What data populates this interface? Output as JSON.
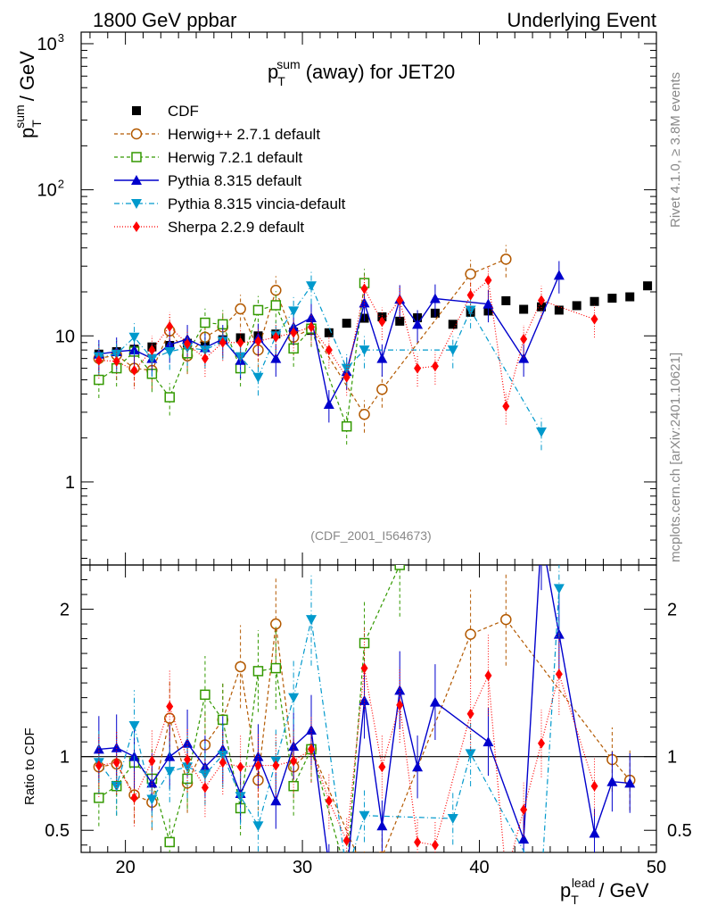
{
  "header": {
    "left": "1800 GeV ppbar",
    "right": "Underlying Event"
  },
  "side_text": {
    "rivet": "Rivet 4.1.0, ≥ 3.8M events",
    "source": "mcplots.cern.ch [arXiv:2401.10621]"
  },
  "watermark": "(CDF_2001_I564673)",
  "chart_data": {
    "type": "scatter",
    "title_main": "p",
    "title_sub": "T",
    "title_sup": "sum",
    "title_rest": "(away) for JET20",
    "ylabel_main": "p",
    "ylabel_sub": "T",
    "ylabel_sup": "sum",
    "ylabel_rest": "/ GeV",
    "xlabel_main": "p",
    "xlabel_sub": "T",
    "xlabel_sup": "lead",
    "xlabel_rest": "/ GeV",
    "ratio_ylabel": "Ratio to CDF",
    "xlim": [
      17.5,
      50
    ],
    "ylim": [
      0.27,
      1200
    ],
    "yscale": "log",
    "ratio_ylim": [
      0.35,
      2.3
    ],
    "xticks": [
      20,
      30,
      40,
      50
    ],
    "yticks": [
      1,
      10,
      100,
      1000
    ],
    "ytick_labels_main": [
      "1",
      "10"
    ],
    "ytick_labels_pow": [
      {
        "base": "10",
        "exp": "2"
      },
      {
        "base": "10",
        "exp": "3"
      }
    ],
    "ratio_yticks": [
      0.5,
      1,
      2
    ],
    "ratio_ytick_labels": [
      "0.5",
      "1",
      "2"
    ],
    "series": [
      {
        "name": "CDF",
        "color": "#000000",
        "marker": "square-filled",
        "dash": "none",
        "x": [
          18.5,
          19.5,
          20.5,
          21.5,
          22.5,
          23.5,
          24.5,
          25.5,
          26.5,
          27.5,
          28.5,
          29.5,
          30.5,
          31.5,
          32.5,
          33.5,
          34.5,
          35.5,
          36.5,
          37.5,
          38.5,
          39.5,
          40.5,
          41.5,
          42.5,
          43.5,
          44.5,
          45.5,
          46.5,
          47.5,
          48.5,
          49.5
        ],
        "y": [
          7.5,
          7.8,
          8.1,
          8.4,
          8.6,
          8.9,
          9.1,
          9.4,
          9.7,
          10.0,
          10.3,
          10.6,
          10.9,
          10.5,
          12.2,
          13.2,
          13.5,
          12.6,
          13.3,
          14.3,
          12.0,
          14.5,
          14.8,
          17.4,
          15.2,
          15.8,
          15.0,
          16.1,
          17.2,
          18.1,
          18.5,
          22.0
        ],
        "ratio": [
          1,
          1,
          1,
          1,
          1,
          1,
          1,
          1,
          1,
          1,
          1,
          1,
          1,
          1,
          1,
          1,
          1,
          1,
          1,
          1,
          1,
          1,
          1,
          1,
          1,
          1,
          1,
          1,
          1,
          1,
          1,
          1
        ]
      },
      {
        "name": "Herwig++ 2.7.1 default",
        "color": "#b35900",
        "marker": "circle-open",
        "dash": "4,3",
        "x": [
          18.5,
          19.5,
          20.5,
          21.5,
          22.5,
          23.5,
          24.5,
          25.5,
          26.5,
          27.5,
          28.5,
          29.5,
          30.5,
          33.5,
          34.5,
          39.5,
          41.5,
          47.5,
          48.5
        ],
        "y": [
          7.0,
          7.4,
          6.0,
          5.8,
          10.8,
          7.3,
          9.8,
          11.5,
          15.3,
          8.0,
          20.5,
          9.8,
          11.2,
          2.9,
          4.3,
          26.5,
          33.5,
          null,
          null
        ],
        "ratio": [
          0.93,
          0.95,
          0.74,
          0.69,
          1.26,
          0.82,
          1.08,
          1.25,
          1.61,
          0.84,
          1.9,
          0.93,
          1.05,
          0.22,
          0.32,
          1.83,
          1.93,
          0.98,
          0.84
        ]
      },
      {
        "name": "Herwig 7.2.1 default",
        "color": "#339900",
        "marker": "square-open",
        "dash": "4,3",
        "x": [
          18.5,
          19.5,
          20.5,
          21.5,
          22.5,
          23.5,
          24.5,
          25.5,
          26.5,
          27.5,
          28.5,
          29.5,
          30.5,
          32.5,
          33.5,
          35.5
        ],
        "y": [
          5.0,
          6.0,
          7.8,
          5.5,
          3.8,
          7.6,
          12.3,
          12.0,
          6.0,
          15.0,
          16.2,
          8.2,
          11.2,
          2.4,
          23.0,
          null
        ],
        "ratio": [
          0.72,
          0.8,
          0.96,
          0.85,
          0.42,
          0.85,
          1.42,
          1.25,
          0.65,
          1.58,
          1.6,
          0.8,
          1.05,
          0.2,
          1.77,
          2.3
        ]
      },
      {
        "name": "Pythia 8.315 default",
        "color": "#0000cc",
        "marker": "triangle-up",
        "dash": "none",
        "x": [
          18.5,
          19.5,
          20.5,
          21.5,
          22.5,
          23.5,
          24.5,
          25.5,
          26.5,
          27.5,
          28.5,
          29.5,
          30.5,
          31.5,
          32.5,
          33.5,
          34.5,
          35.5,
          36.5,
          37.5,
          40.5,
          42.5,
          43.5,
          44.5,
          46.5,
          47.5,
          48.5
        ],
        "y": [
          7.5,
          7.8,
          8.0,
          7.0,
          8.7,
          9.5,
          8.3,
          9.5,
          6.8,
          9.7,
          7.0,
          11.5,
          13.3,
          3.4,
          5.7,
          16.8,
          7.0,
          17.8,
          12.0,
          18.0,
          16.5,
          7.0,
          null,
          26.0,
          null,
          null,
          null
        ],
        "ratio": [
          1.05,
          1.06,
          1.0,
          0.82,
          1.0,
          1.09,
          0.93,
          1.05,
          0.75,
          1.0,
          0.7,
          1.07,
          1.18,
          0.26,
          0.2,
          1.38,
          0.53,
          1.45,
          0.93,
          1.37,
          1.1,
          0.44,
          2.5,
          1.83,
          0.48,
          0.83,
          0.82
        ]
      },
      {
        "name": "Pythia 8.315 vincia-default",
        "color": "#0099cc",
        "marker": "triangle-down",
        "dash": "6,3,1,3",
        "x": [
          18.5,
          19.5,
          20.5,
          21.5,
          22.5,
          23.5,
          24.5,
          25.5,
          26.5,
          27.5,
          28.5,
          29.5,
          30.5,
          32.5,
          33.5,
          38.5,
          39.5,
          43.5,
          44.5
        ],
        "y": [
          7.2,
          7.5,
          9.8,
          7.0,
          7.8,
          8.3,
          8.0,
          9.2,
          7.2,
          5.2,
          10.0,
          14.8,
          22.0,
          6.0,
          8.0,
          8.0,
          15.0,
          2.2,
          null
        ],
        "ratio": [
          0.96,
          0.8,
          1.21,
          0.71,
          0.9,
          0.93,
          0.88,
          1.01,
          0.73,
          0.53,
          0.97,
          1.4,
          1.93,
          0.21,
          0.6,
          0.58,
          1.02,
          0.14,
          2.14
        ]
      },
      {
        "name": "Sherpa 2.2.9 default",
        "color": "#ff0000",
        "marker": "diamond",
        "dash": "1,2",
        "x": [
          18.5,
          19.5,
          20.5,
          21.5,
          22.5,
          23.5,
          24.5,
          25.5,
          26.5,
          27.5,
          28.5,
          29.5,
          30.5,
          31.5,
          32.5,
          33.5,
          34.5,
          35.5,
          36.5,
          37.5,
          39.5,
          40.5,
          41.5,
          42.5,
          43.5,
          44.5,
          46.5
        ],
        "y": [
          6.8,
          6.7,
          5.8,
          8.0,
          11.6,
          8.8,
          7.0,
          9.0,
          9.0,
          9.2,
          9.8,
          10.5,
          11.5,
          8.0,
          5.2,
          21.0,
          12.5,
          17.5,
          6.0,
          6.2,
          19.0,
          24.0,
          3.3,
          9.5,
          17.5,
          null,
          13.0
        ],
        "ratio": [
          0.94,
          0.96,
          0.72,
          0.97,
          1.34,
          0.98,
          0.79,
          0.96,
          0.93,
          0.94,
          0.94,
          0.97,
          1.05,
          0.7,
          0.43,
          1.6,
          0.93,
          1.35,
          0.42,
          0.4,
          1.29,
          1.55,
          0.19,
          0.64,
          1.09,
          1.56,
          0.8
        ]
      }
    ]
  }
}
